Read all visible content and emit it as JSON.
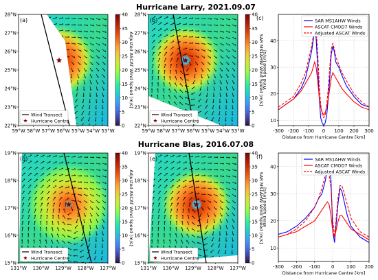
{
  "figure": {
    "titles": [
      "Hurricane Larry, 2021.09.07",
      "Hurricane Blas, 2016.07.08"
    ]
  },
  "colors": {
    "sar": "#0000ff",
    "cmod7": "#ff0000",
    "adjusted": "#ff0000",
    "transect": "#000000",
    "centre": "#8b0000",
    "colormap": [
      "#30123b",
      "#4145ab",
      "#4675ed",
      "#39a2fc",
      "#1bcfd4",
      "#24eca6",
      "#61fc6c",
      "#a4fc3b",
      "#d1e834",
      "#f3c63a",
      "#fe9b2d",
      "#f36315",
      "#d93806",
      "#b11901",
      "#7a0403"
    ]
  },
  "maps": [
    {
      "id": "a",
      "panel_label": "(a)",
      "storm": "larry",
      "field": "adjusted",
      "lat_ticks": [
        "22°N",
        "23°N",
        "24°N",
        "25°N",
        "26°N",
        "27°N",
        "28°N"
      ],
      "lon_ticks": [
        "59°W",
        "58°W",
        "57°W",
        "56°W",
        "55°W",
        "54°W",
        "53°W"
      ],
      "colorbar_label": "Adjusted ASCAT Wind Speed [m/s]",
      "colorbar_ticks": [
        "0",
        "5",
        "10",
        "15",
        "20",
        "25",
        "30",
        "35",
        "40"
      ],
      "colorbar_range": [
        0,
        40
      ],
      "legend": [
        "Wind Transect",
        "Hurricane Centre"
      ],
      "centre_lonlat": [
        -56.1,
        25.5
      ]
    },
    {
      "id": "b",
      "panel_label": "(b)",
      "storm": "larry",
      "field": "sar",
      "lat_ticks": [
        "22°N",
        "23°N",
        "24°N",
        "25°N",
        "26°N",
        "27°N",
        "28°N"
      ],
      "lon_ticks": [
        "59°W",
        "58°W",
        "57°W",
        "56°W",
        "55°W",
        "54°W",
        "53°W"
      ],
      "colorbar_label": "SAR MS1AHW Wind Speed [m/s]",
      "colorbar_ticks": [
        "0",
        "5",
        "10",
        "15",
        "20",
        "25",
        "30",
        "35",
        "40"
      ],
      "colorbar_range": [
        0,
        40
      ],
      "legend": [
        "Wind Transect",
        "Hurricane Centre"
      ],
      "centre_lonlat": [
        -56.1,
        25.5
      ]
    },
    {
      "id": "d",
      "panel_label": "(d)",
      "storm": "blas",
      "field": "adjusted",
      "lat_ticks": [
        "15°N",
        "16°N",
        "17°N",
        "18°N",
        "19°N"
      ],
      "lon_ticks": [
        "131°W",
        "130°W",
        "129°W",
        "128°W",
        "127°W"
      ],
      "colorbar_label": "Adjusted ASCAT Wind Speed [m/s]",
      "colorbar_ticks": [
        "0",
        "5",
        "10",
        "15",
        "20",
        "25",
        "30",
        "35",
        "40"
      ],
      "colorbar_range": [
        0,
        40
      ],
      "legend": [
        "Wind Transect",
        "Hurricane Centre"
      ],
      "centre_lonlat": [
        -128.9,
        17.1
      ]
    },
    {
      "id": "e",
      "panel_label": "(e)",
      "storm": "blas",
      "field": "sar",
      "lat_ticks": [
        "15°N",
        "16°N",
        "17°N",
        "18°N",
        "19°N"
      ],
      "lon_ticks": [
        "131°W",
        "130°W",
        "129°W",
        "128°W",
        "127°W"
      ],
      "colorbar_label": "SAR MS1AHW Wind Speed [m/s]",
      "colorbar_ticks": [
        "0",
        "5",
        "10",
        "15",
        "20",
        "25",
        "30",
        "35",
        "40"
      ],
      "colorbar_range": [
        0,
        40
      ],
      "legend": [
        "Wind Transect",
        "Hurricane Centre"
      ],
      "centre_lonlat": [
        -128.9,
        17.1
      ]
    }
  ],
  "chart_data": [
    {
      "id": "c",
      "type": "line",
      "panel_label": "(c)",
      "xlabel": "Distance from Hurricane Centre  [km]",
      "ylabel": "Wind Speed  [m/s]",
      "xlim": [
        -300,
        300
      ],
      "ylim": [
        8,
        50
      ],
      "xticks": [
        -300,
        -200,
        -100,
        0,
        100,
        200,
        300
      ],
      "yticks": [
        10,
        20,
        30,
        40
      ],
      "legend_position": "top-right",
      "x": [
        -300,
        -250,
        -200,
        -150,
        -120,
        -100,
        -80,
        -60,
        -50,
        -40,
        -30,
        -20,
        -10,
        0,
        10,
        20,
        30,
        40,
        50,
        60,
        70,
        80,
        100,
        120,
        150,
        200,
        250,
        300
      ],
      "series": [
        {
          "name": "SAR MS1AHW Winds",
          "style": "solid",
          "color": "#0000ff",
          "values": [
            14,
            16,
            18,
            22,
            26,
            31,
            36,
            44,
            41,
            30,
            19,
            11,
            9,
            8,
            9,
            12,
            18,
            26,
            35,
            38,
            36,
            32,
            30,
            27,
            23,
            19,
            16,
            15
          ]
        },
        {
          "name": "ASCAT CMOD7 Winds",
          "style": "solid",
          "color": "#ff0000",
          "values": [
            14,
            16,
            18,
            21,
            24,
            26,
            28,
            32,
            30,
            25,
            19,
            15,
            13,
            12,
            13,
            15,
            18,
            22,
            26,
            28,
            27,
            26,
            24,
            22,
            20,
            17,
            15,
            14
          ]
        },
        {
          "name": "Adjusted ASCAT Winds",
          "style": "dashed",
          "color": "#ff0000",
          "values": [
            15,
            17,
            19,
            24,
            28,
            33,
            38,
            45,
            44,
            36,
            24,
            16,
            12,
            11,
            12,
            16,
            22,
            30,
            37,
            39,
            37,
            34,
            31,
            28,
            25,
            20,
            17,
            15
          ]
        }
      ]
    },
    {
      "id": "f",
      "type": "line",
      "panel_label": "(f)",
      "xlabel": "Distance from Hurricane Centre  [km]",
      "ylabel": "Wind Speed  [m/s]",
      "xlim": [
        -300,
        200
      ],
      "ylim": [
        5,
        45
      ],
      "xticks": [
        -300,
        -200,
        -100,
        0,
        100,
        200
      ],
      "yticks": [
        10,
        20,
        30,
        40
      ],
      "legend_position": "top-right",
      "x": [
        -300,
        -250,
        -200,
        -150,
        -100,
        -80,
        -60,
        -40,
        -30,
        -20,
        -10,
        0,
        10,
        20,
        30,
        40,
        50,
        60,
        80,
        100,
        150,
        200
      ],
      "series": [
        {
          "name": "SAR MS1AHW Winds",
          "style": "solid",
          "color": "#0000ff",
          "values": [
            15,
            16,
            18,
            21,
            25,
            28,
            30,
            35,
            40,
            42,
            35,
            16,
            12,
            20,
            27,
            32,
            31,
            28,
            22,
            18,
            14,
            12
          ]
        },
        {
          "name": "ASCAT CMOD7 Winds",
          "style": "solid",
          "color": "#ff0000",
          "values": [
            14,
            15,
            16,
            18,
            20,
            22,
            24,
            26,
            27,
            26,
            22,
            16,
            14,
            17,
            20,
            22,
            22,
            21,
            19,
            17,
            15,
            13
          ]
        },
        {
          "name": "Adjusted ASCAT Winds",
          "style": "dashed",
          "color": "#ff0000",
          "values": [
            14,
            15,
            17,
            20,
            25,
            28,
            32,
            37,
            38,
            37,
            32,
            20,
            14,
            22,
            29,
            33,
            33,
            31,
            26,
            21,
            16,
            14
          ]
        }
      ]
    }
  ]
}
